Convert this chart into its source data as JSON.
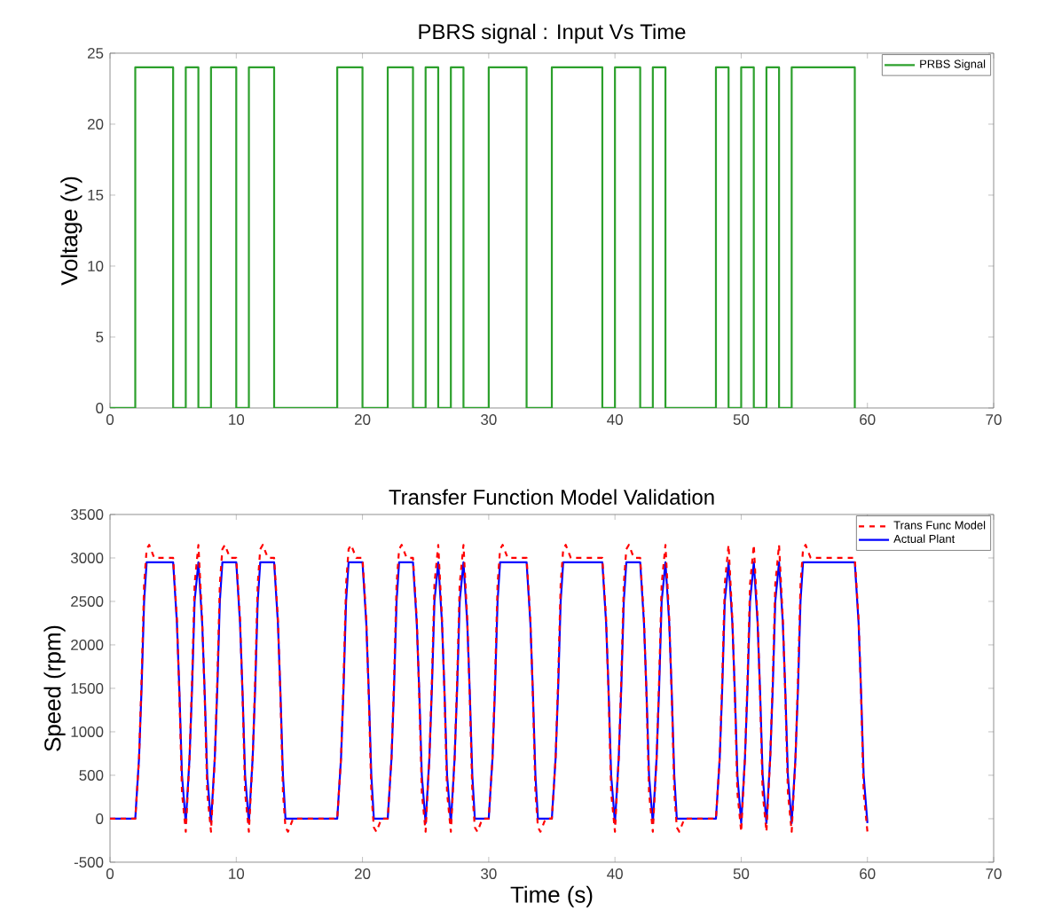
{
  "chart_data": [
    {
      "type": "step",
      "title": "PBRS signal : Input Vs Time",
      "ylabel": "Voltage (v)",
      "xlim": [
        0,
        70
      ],
      "xticks": [
        0,
        10,
        20,
        30,
        40,
        50,
        60,
        70
      ],
      "ylim": [
        0,
        25
      ],
      "yticks": [
        0,
        5,
        10,
        15,
        20,
        25
      ],
      "grid": false,
      "legend": "top right",
      "marker": "none",
      "series": [
        {
          "name": "PRBS Signal",
          "color": "#2ca02c",
          "line_style": "solid",
          "x": [
            0,
            2,
            5,
            6,
            7,
            8,
            10,
            11,
            13,
            18,
            20,
            22,
            24,
            25,
            26,
            27,
            28,
            30,
            33,
            35,
            39,
            40,
            42,
            43,
            44,
            48,
            49,
            50,
            51,
            52,
            53,
            54,
            59
          ],
          "values": [
            0,
            24,
            0,
            24,
            0,
            24,
            0,
            24,
            0,
            24,
            0,
            24,
            0,
            24,
            0,
            24,
            0,
            24,
            0,
            24,
            0,
            24,
            0,
            24,
            0,
            24,
            0,
            24,
            0,
            24,
            0,
            24,
            0
          ]
        }
      ]
    },
    {
      "type": "line",
      "title": "Transfer Function Model Validation",
      "xlabel": "Time (s)",
      "ylabel": "Speed (rpm)",
      "xlim": [
        0,
        70
      ],
      "xticks": [
        0,
        10,
        20,
        30,
        40,
        50,
        60,
        70
      ],
      "ylim": [
        -500,
        3500
      ],
      "yticks": [
        -500,
        0,
        500,
        1000,
        1500,
        2000,
        2500,
        3000,
        3500
      ],
      "grid": false,
      "legend": "top right",
      "marker": "none",
      "series": [
        {
          "name": "Trans Func Model",
          "color": "#ff0000",
          "line_style": "dashed",
          "x": [
            0,
            2,
            2.3,
            2.5,
            2.7,
            2.9,
            3.1,
            3.5,
            5,
            5.3,
            5.5,
            5.7,
            6,
            6.3,
            6.5,
            6.7,
            7,
            7.3,
            7.5,
            7.7,
            8,
            8.3,
            8.5,
            8.7,
            8.9,
            9.1,
            9.5,
            10,
            10.3,
            10.5,
            10.7,
            11,
            11.3,
            11.5,
            11.7,
            11.9,
            12.1,
            12.5,
            13,
            13.3,
            13.5,
            13.7,
            13.9,
            14.1,
            14.5,
            18,
            18.3,
            18.5,
            18.7,
            18.9,
            19.1,
            19.5,
            20,
            20.3,
            20.5,
            20.7,
            20.9,
            21.1,
            21.5,
            22,
            22.3,
            22.5,
            22.7,
            22.9,
            23.1,
            23.5,
            24,
            24.3,
            24.5,
            24.7,
            25,
            25.3,
            25.5,
            25.7,
            26,
            26.3,
            26.5,
            26.7,
            27,
            27.3,
            27.5,
            27.7,
            28,
            28.3,
            28.5,
            28.7,
            28.9,
            29.1,
            29.5,
            30,
            30.3,
            30.5,
            30.7,
            30.9,
            31.1,
            31.5,
            33,
            33.3,
            33.5,
            33.7,
            33.9,
            34.1,
            34.5,
            35,
            35.3,
            35.5,
            35.7,
            35.9,
            36.1,
            36.5,
            39,
            39.3,
            39.5,
            39.7,
            40,
            40.3,
            40.5,
            40.7,
            40.9,
            41.1,
            41.5,
            42,
            42.3,
            42.5,
            42.7,
            43,
            43.3,
            43.5,
            43.7,
            44,
            44.3,
            44.5,
            44.7,
            44.9,
            45.1,
            45.5,
            48,
            48.3,
            48.5,
            48.7,
            49,
            49.3,
            49.5,
            49.7,
            50,
            50.3,
            50.5,
            50.7,
            51,
            51.3,
            51.5,
            51.7,
            52,
            52.3,
            52.5,
            52.7,
            53,
            53.3,
            53.5,
            53.7,
            54,
            54.3,
            54.5,
            54.7,
            54.9,
            55.1,
            55.5,
            59,
            59.3,
            59.5,
            59.7,
            60
          ],
          "values": [
            0,
            0,
            700,
            1600,
            2700,
            3100,
            3150,
            3000,
            3000,
            2300,
            1400,
            300,
            -150,
            700,
            1600,
            2700,
            3150,
            2300,
            1400,
            300,
            -150,
            700,
            1600,
            2700,
            3100,
            3150,
            3000,
            3000,
            2300,
            1400,
            300,
            -150,
            700,
            1600,
            2700,
            3100,
            3150,
            3000,
            3000,
            2300,
            1400,
            300,
            -100,
            -150,
            0,
            0,
            700,
            1600,
            2700,
            3100,
            3150,
            3000,
            3000,
            2300,
            1400,
            300,
            -100,
            -150,
            0,
            0,
            700,
            1600,
            2700,
            3100,
            3150,
            3000,
            3000,
            2300,
            1400,
            300,
            -150,
            700,
            1600,
            2700,
            3150,
            2300,
            1400,
            300,
            -150,
            700,
            1600,
            2700,
            3150,
            2300,
            1400,
            300,
            -100,
            -150,
            0,
            0,
            700,
            1600,
            2700,
            3100,
            3150,
            3000,
            3000,
            2300,
            1400,
            300,
            -100,
            -150,
            0,
            0,
            700,
            1600,
            2700,
            3100,
            3150,
            3000,
            3000,
            2300,
            1400,
            300,
            -150,
            700,
            1600,
            2700,
            3100,
            3150,
            3000,
            3000,
            2300,
            1400,
            300,
            -150,
            700,
            1600,
            2700,
            3150,
            2300,
            1400,
            300,
            -100,
            -150,
            0,
            0,
            700,
            1600,
            2700,
            3150,
            2300,
            1400,
            300,
            -150,
            700,
            1600,
            2700,
            3150,
            2300,
            1400,
            300,
            -150,
            700,
            1600,
            2700,
            3150,
            2300,
            1400,
            300,
            -150,
            700,
            1600,
            2700,
            3100,
            3150,
            3000,
            3000,
            2300,
            1400,
            300,
            -150
          ]
        },
        {
          "name": "Actual Plant",
          "color": "#0000ff",
          "line_style": "solid",
          "x": [
            0,
            2,
            2.3,
            2.5,
            2.7,
            2.9,
            5,
            5.3,
            5.5,
            5.7,
            6,
            6.3,
            6.5,
            6.7,
            7,
            7.3,
            7.5,
            7.7,
            8,
            8.3,
            8.5,
            8.7,
            8.9,
            10,
            10.3,
            10.5,
            10.7,
            11,
            11.3,
            11.5,
            11.7,
            11.9,
            13,
            13.3,
            13.5,
            13.7,
            13.9,
            18,
            18.3,
            18.5,
            18.7,
            18.9,
            20,
            20.3,
            20.5,
            20.7,
            20.9,
            22,
            22.3,
            22.5,
            22.7,
            22.9,
            24,
            24.3,
            24.5,
            24.7,
            25,
            25.3,
            25.5,
            25.7,
            26,
            26.3,
            26.5,
            26.7,
            27,
            27.3,
            27.5,
            27.7,
            28,
            28.3,
            28.5,
            28.7,
            28.9,
            30,
            30.3,
            30.5,
            30.7,
            30.9,
            33,
            33.3,
            33.5,
            33.7,
            33.9,
            35,
            35.3,
            35.5,
            35.7,
            35.9,
            39,
            39.3,
            39.5,
            39.7,
            40,
            40.3,
            40.5,
            40.7,
            40.9,
            42,
            42.3,
            42.5,
            42.7,
            43,
            43.3,
            43.5,
            43.7,
            44,
            44.3,
            44.5,
            44.7,
            44.9,
            48,
            48.3,
            48.5,
            48.7,
            49,
            49.3,
            49.5,
            49.7,
            50,
            50.3,
            50.5,
            50.7,
            51,
            51.3,
            51.5,
            51.7,
            52,
            52.3,
            52.5,
            52.7,
            53,
            53.3,
            53.5,
            53.7,
            54,
            54.3,
            54.5,
            54.7,
            54.9,
            59,
            59.3,
            59.5,
            59.7,
            60
          ],
          "values": [
            0,
            0,
            700,
            1500,
            2500,
            2950,
            2950,
            2250,
            1450,
            500,
            -50,
            700,
            1500,
            2500,
            2950,
            2250,
            1450,
            500,
            -50,
            700,
            1500,
            2500,
            2950,
            2950,
            2250,
            1450,
            500,
            -50,
            700,
            1500,
            2500,
            2950,
            2950,
            2250,
            1450,
            500,
            0,
            0,
            700,
            1500,
            2500,
            2950,
            2950,
            2250,
            1450,
            500,
            0,
            0,
            700,
            1500,
            2500,
            2950,
            2950,
            2250,
            1450,
            500,
            -50,
            700,
            1500,
            2500,
            2950,
            2250,
            1450,
            500,
            -50,
            700,
            1500,
            2500,
            2950,
            2250,
            1450,
            500,
            0,
            0,
            700,
            1500,
            2500,
            2950,
            2950,
            2250,
            1450,
            500,
            0,
            0,
            700,
            1500,
            2500,
            2950,
            2950,
            2250,
            1450,
            500,
            -50,
            700,
            1500,
            2500,
            2950,
            2950,
            2250,
            1450,
            500,
            -50,
            700,
            1500,
            2500,
            2950,
            2250,
            1450,
            500,
            0,
            0,
            700,
            1500,
            2500,
            2950,
            2250,
            1450,
            500,
            -50,
            700,
            1500,
            2500,
            2950,
            2250,
            1450,
            500,
            -50,
            700,
            1500,
            2500,
            2950,
            2250,
            1450,
            500,
            -50,
            700,
            1500,
            2500,
            2950,
            2950,
            2250,
            1450,
            500,
            -50
          ]
        }
      ]
    }
  ]
}
